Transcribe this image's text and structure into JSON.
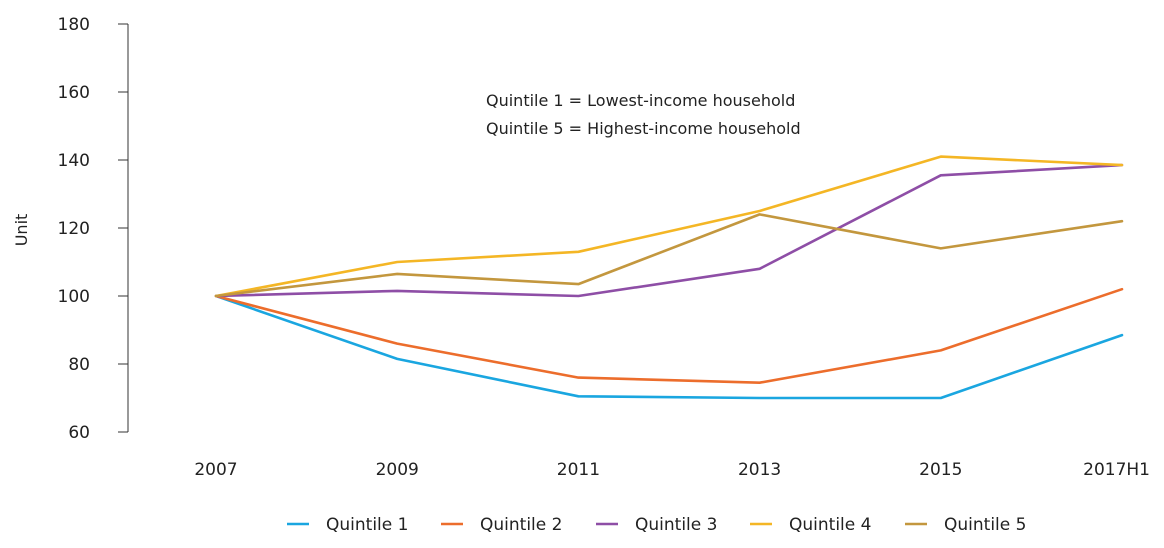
{
  "chart_data": {
    "type": "line",
    "title": "",
    "xlabel": "",
    "ylabel": "Unit",
    "ylim": [
      60,
      180
    ],
    "yticks": [
      60,
      80,
      100,
      120,
      140,
      160,
      180
    ],
    "categories": [
      "2007",
      "2009",
      "2011",
      "2013",
      "2015",
      "2017H1"
    ],
    "grid": false,
    "legend_position": "bottom",
    "annotations": [
      "Quintile 1 = Lowest-income household",
      "Quintile 5 = Highest-income household"
    ],
    "series": [
      {
        "name": "Quintile 1",
        "color": "#1aa6e0",
        "values": [
          100,
          81.5,
          70.5,
          70,
          70,
          88.5
        ]
      },
      {
        "name": "Quintile 2",
        "color": "#ec6d2c",
        "values": [
          100,
          86,
          76,
          74.5,
          84,
          102
        ]
      },
      {
        "name": "Quintile 3",
        "color": "#8e4ea6",
        "values": [
          100,
          101.5,
          100,
          108,
          135.5,
          138.5
        ]
      },
      {
        "name": "Quintile 4",
        "color": "#f4b625",
        "values": [
          100,
          110,
          113,
          125,
          141,
          138.5
        ]
      },
      {
        "name": "Quintile 5",
        "color": "#c3973e",
        "values": [
          100,
          106.5,
          103.5,
          124,
          114,
          122
        ]
      }
    ]
  }
}
